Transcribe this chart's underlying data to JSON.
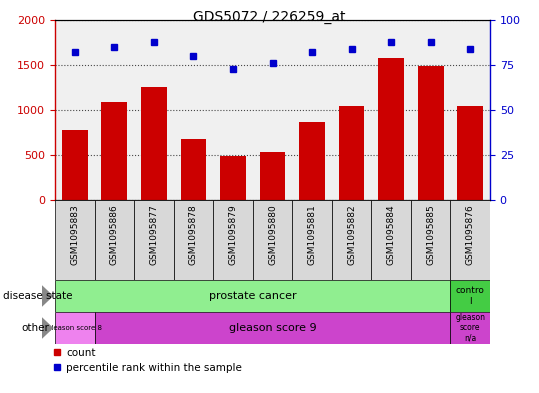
{
  "title": "GDS5072 / 226259_at",
  "samples": [
    "GSM1095883",
    "GSM1095886",
    "GSM1095877",
    "GSM1095878",
    "GSM1095879",
    "GSM1095880",
    "GSM1095881",
    "GSM1095882",
    "GSM1095884",
    "GSM1095885",
    "GSM1095876"
  ],
  "counts": [
    780,
    1090,
    1260,
    680,
    490,
    530,
    870,
    1040,
    1580,
    1490,
    1050
  ],
  "percentiles": [
    82,
    85,
    88,
    80,
    73,
    76,
    82,
    84,
    88,
    88,
    84
  ],
  "bar_color": "#cc0000",
  "dot_color": "#0000cc",
  "ylim_left": [
    0,
    2000
  ],
  "ylim_right": [
    0,
    100
  ],
  "yticks_left": [
    0,
    500,
    1000,
    1500,
    2000
  ],
  "yticks_right": [
    0,
    25,
    50,
    75,
    100
  ],
  "bg_color": "#ffffff",
  "plot_area_color": "#f0f0f0",
  "cell_bg": "#d8d8d8",
  "green_color": "#90EE90",
  "green_dark": "#44cc44",
  "magenta_light": "#EE82EE",
  "magenta_dark": "#CC44CC",
  "legend_items": [
    {
      "label": "count",
      "color": "#cc0000"
    },
    {
      "label": "percentile rank within the sample",
      "color": "#0000cc"
    }
  ]
}
